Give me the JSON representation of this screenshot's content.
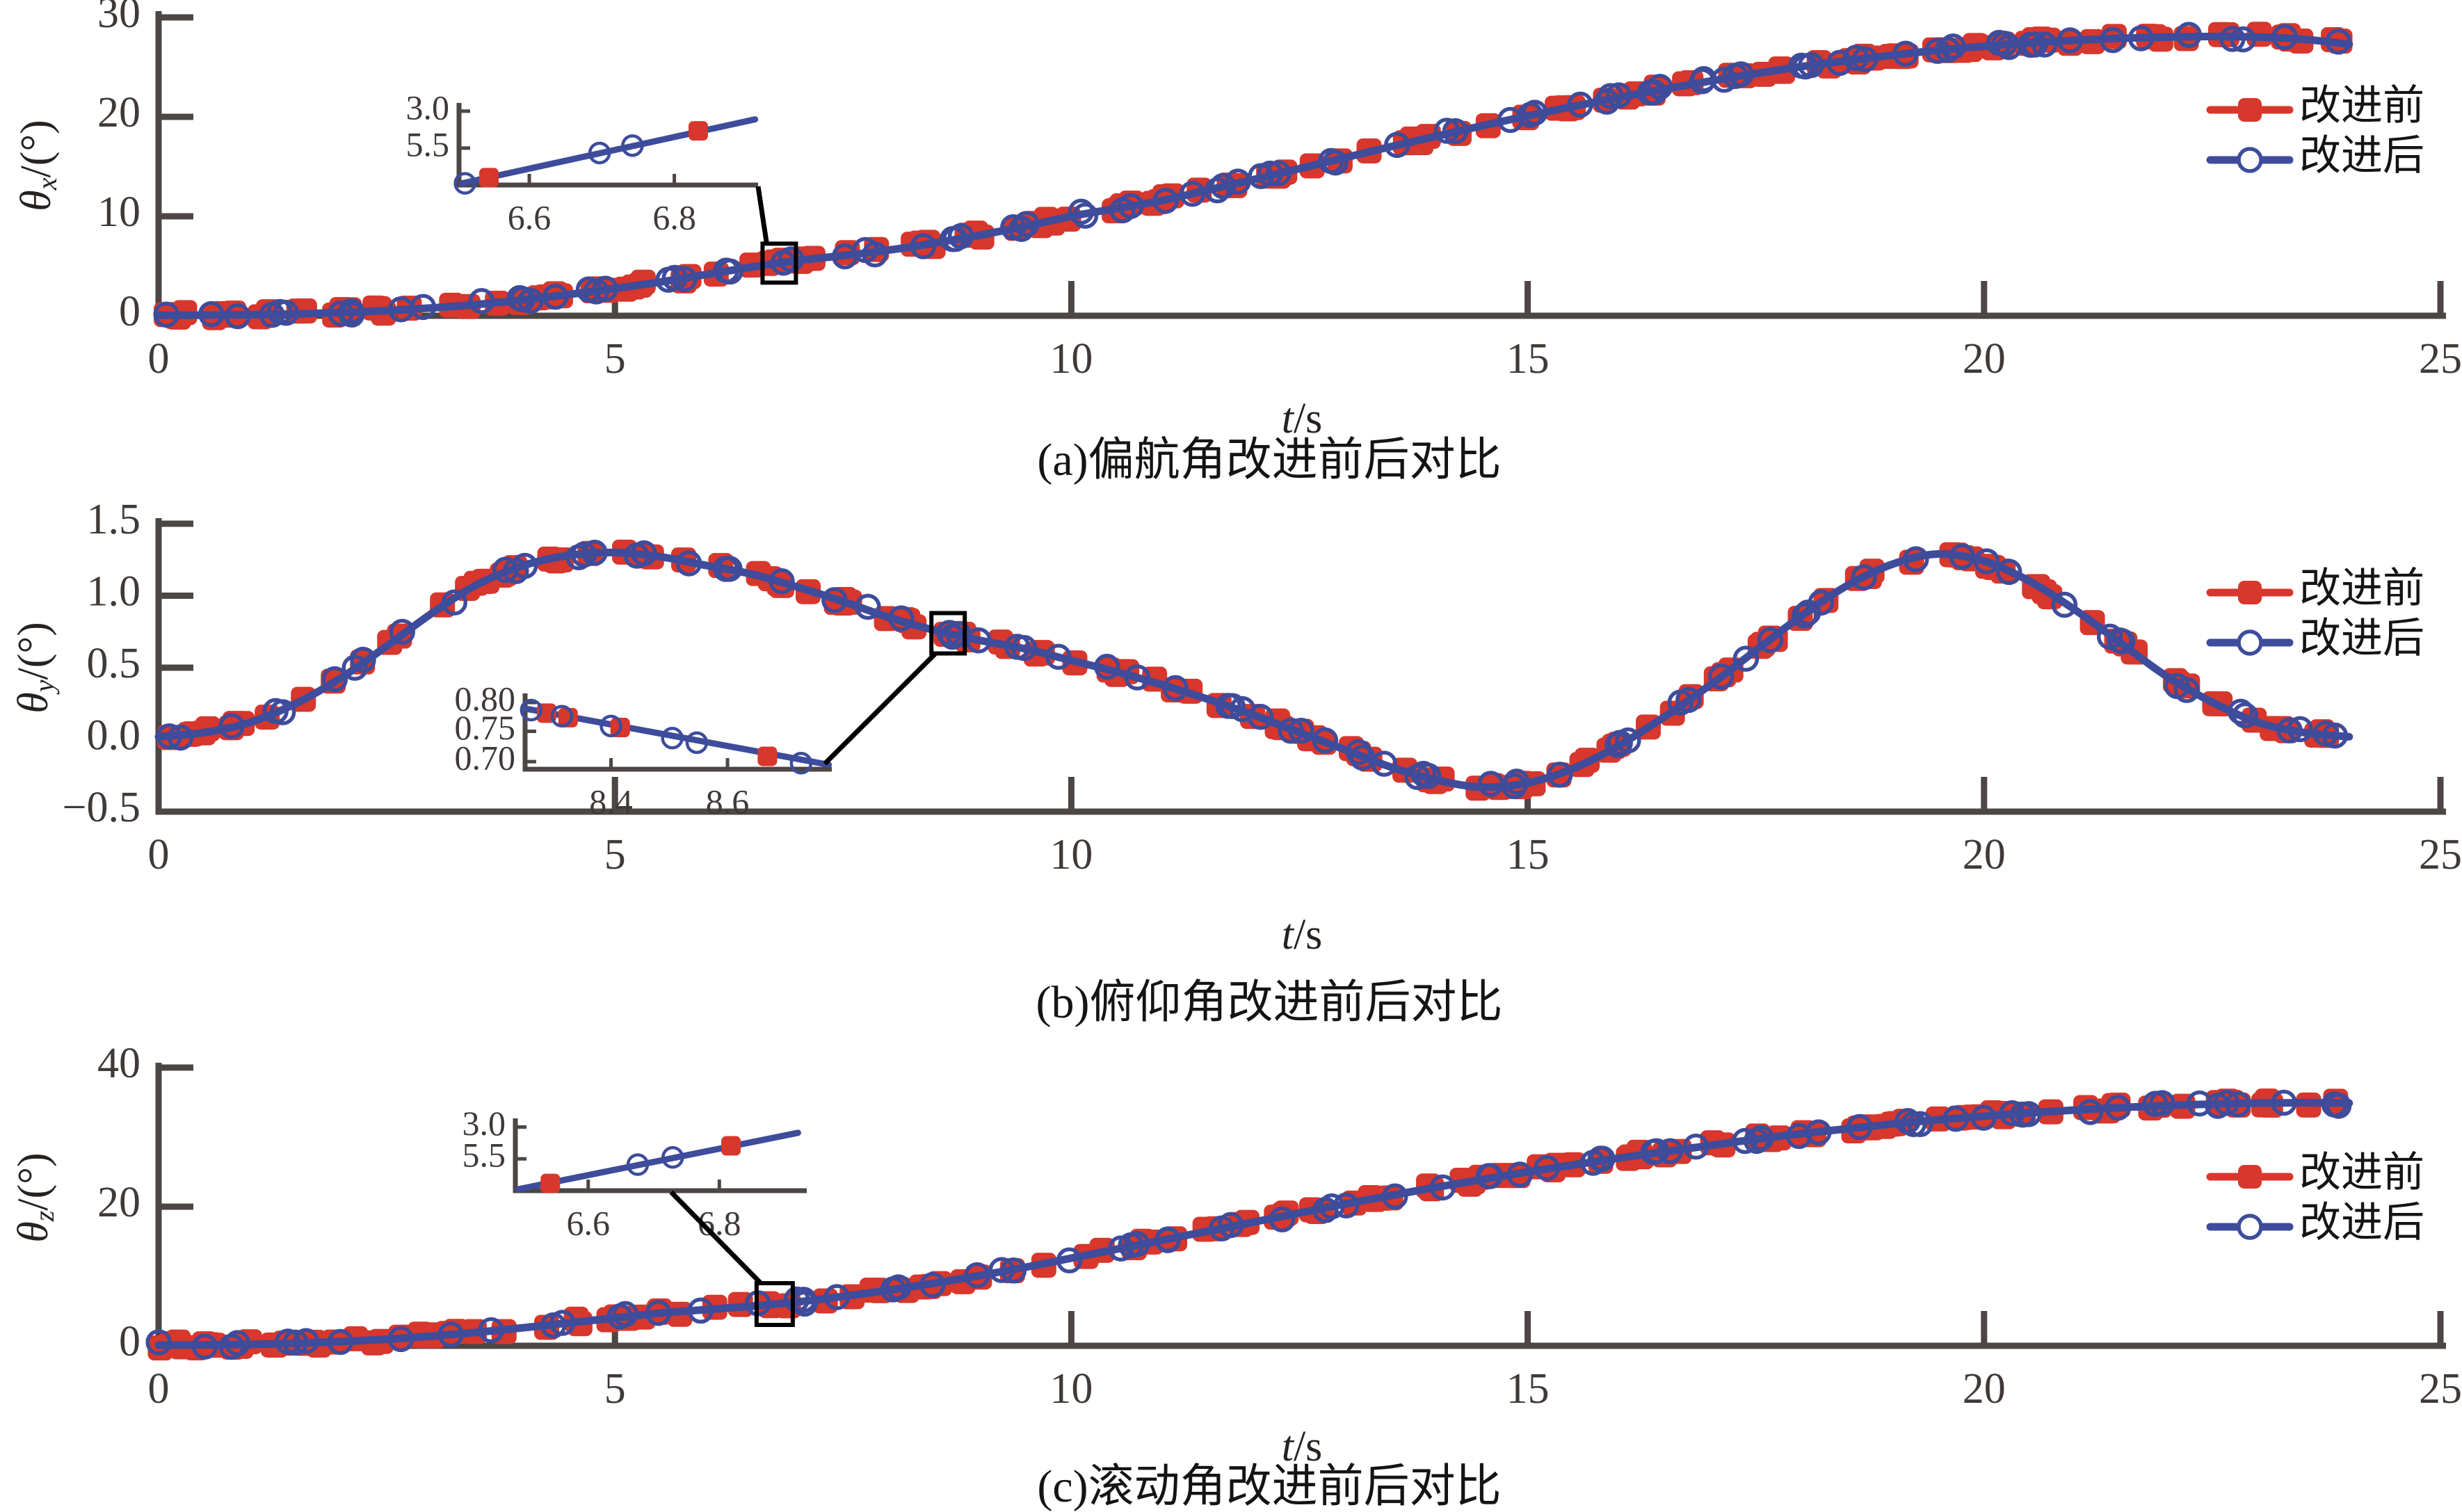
{
  "colors": {
    "before": "#d7372c",
    "after": "#3e4c9b",
    "axis": "#4c4644",
    "tick_text": "#3f3a37",
    "caption_text": "#161412",
    "callout": "#000000",
    "background": "#ffffff"
  },
  "legend": {
    "before_label": "改进前",
    "after_label": "改进后"
  },
  "chart_data": [
    {
      "type": "line",
      "panel": "a",
      "title": "(a)偏航角改进前后对比",
      "xlabel": "t/s",
      "xlabel_t": "t",
      "xlabel_unit": "/s",
      "ylabel": "θx/(°)",
      "ylabel_theta": "θ",
      "ylabel_sub": "x",
      "ylabel_unit": "/(°)",
      "xlim": [
        0,
        25
      ],
      "ylim": [
        0,
        30
      ],
      "xticks": [
        0,
        5,
        10,
        15,
        20,
        25
      ],
      "xtick_labels": [
        "0",
        "5",
        "10",
        "15",
        "20",
        "25"
      ],
      "yticks": [
        0,
        10,
        20,
        30
      ],
      "ytick_labels": [
        "0",
        "10",
        "20",
        "30"
      ],
      "grid": false,
      "legend_position": "upper-right",
      "x_start": 0,
      "x_step": 0.5,
      "values": [
        0.05,
        0.06,
        0.1,
        0.18,
        0.32,
        0.52,
        0.8,
        1.15,
        1.6,
        2.15,
        2.75,
        3.4,
        4.15,
        4.9,
        5.55,
        6.05,
        6.6,
        7.3,
        8.1,
        9.0,
        10.0,
        10.8,
        11.6,
        12.65,
        13.7,
        14.8,
        15.9,
        17.0,
        18.05,
        19.1,
        20.1,
        21.05,
        21.95,
        22.8,
        23.6,
        24.35,
        25.05,
        25.65,
        26.2,
        26.7,
        27.1,
        27.45,
        27.7,
        27.9,
        28.02,
        28.08,
        28.02,
        27.8,
        27.3
      ],
      "series": [
        {
          "name": "改进前",
          "marker": "square",
          "color_key": "before"
        },
        {
          "name": "改进后",
          "marker": "circle",
          "color_key": "after"
        }
      ],
      "zoom_center_t": 6.8,
      "inset": {
        "yticks": [
          {
            "label": "3.0",
            "f": 0.9
          },
          {
            "label": "5.5",
            "f": 0.45
          }
        ],
        "xticks": [
          {
            "label": "6.6",
            "f": 0.235
          },
          {
            "label": "6.8",
            "f": 0.72
          }
        ],
        "line": [
          [
            0.01,
            0.02
          ],
          [
            0.99,
            0.8
          ]
        ],
        "squares": [
          [
            0.1,
            0.09
          ],
          [
            0.8,
            0.66
          ]
        ],
        "circles": [
          [
            0.02,
            0.02
          ],
          [
            0.47,
            0.39
          ],
          [
            0.58,
            0.48
          ]
        ]
      }
    },
    {
      "type": "line",
      "panel": "b",
      "title": "(b)俯仰角改进前后对比",
      "xlabel": "t/s",
      "xlabel_t": "t",
      "xlabel_unit": "/s",
      "ylabel": "θy/(°)",
      "ylabel_theta": "θ",
      "ylabel_sub": "y",
      "ylabel_unit": "/(°)",
      "xlim": [
        0,
        25
      ],
      "ylim": [
        -0.5,
        1.5
      ],
      "xticks": [
        0,
        5,
        10,
        15,
        20,
        25
      ],
      "xtick_labels": [
        "0",
        "5",
        "10",
        "15",
        "20",
        "25"
      ],
      "yticks": [
        -0.5,
        0.0,
        0.5,
        1.0,
        1.5
      ],
      "ytick_labels": [
        "−0.5",
        "0.0",
        "0.5",
        "1.0",
        "1.5"
      ],
      "grid": false,
      "legend_position": "upper-right",
      "x_start": 0,
      "x_step": 0.5,
      "values": [
        0.02,
        0.05,
        0.12,
        0.25,
        0.43,
        0.65,
        0.88,
        1.08,
        1.21,
        1.28,
        1.3,
        1.27,
        1.21,
        1.15,
        1.06,
        0.96,
        0.85,
        0.76,
        0.69,
        0.63,
        0.55,
        0.47,
        0.38,
        0.28,
        0.17,
        0.05,
        -0.07,
        -0.19,
        -0.28,
        -0.33,
        -0.3,
        -0.2,
        -0.04,
        0.16,
        0.38,
        0.62,
        0.86,
        1.07,
        1.22,
        1.29,
        1.24,
        1.1,
        0.9,
        0.67,
        0.44,
        0.26,
        0.12,
        0.05,
        0.02
      ],
      "series": [
        {
          "name": "改进前",
          "marker": "square",
          "color_key": "before"
        },
        {
          "name": "改进后",
          "marker": "circle",
          "color_key": "after"
        }
      ],
      "zoom_center_t": 8.65,
      "inset": {
        "yticks": [
          {
            "label": "0.80",
            "f": 0.88
          },
          {
            "label": "0.75",
            "f": 0.5
          },
          {
            "label": "0.70",
            "f": 0.1
          }
        ],
        "xticks": [
          {
            "label": "8.4",
            "f": 0.28
          },
          {
            "label": "8.6",
            "f": 0.66
          }
        ],
        "line": [
          [
            0.0,
            0.8
          ],
          [
            0.99,
            0.06
          ]
        ],
        "squares": [
          [
            0.07,
            0.74
          ],
          [
            0.14,
            0.68
          ],
          [
            0.31,
            0.55
          ],
          [
            0.79,
            0.17
          ]
        ],
        "circles": [
          [
            0.02,
            0.78
          ],
          [
            0.12,
            0.7
          ],
          [
            0.28,
            0.57
          ],
          [
            0.48,
            0.41
          ],
          [
            0.56,
            0.35
          ],
          [
            0.9,
            0.08
          ]
        ]
      }
    },
    {
      "type": "line",
      "panel": "c",
      "title": "(c)滚动角改进前后对比",
      "xlabel": "t/s",
      "xlabel_t": "t",
      "xlabel_unit": "/s",
      "ylabel": "θz/(°)",
      "ylabel_theta": "θ",
      "ylabel_sub": "z",
      "ylabel_unit": "/(°)",
      "xlim": [
        0,
        25
      ],
      "ylim": [
        0,
        40
      ],
      "xticks": [
        0,
        5,
        10,
        15,
        20,
        25
      ],
      "xtick_labels": [
        "0",
        "5",
        "10",
        "15",
        "20",
        "25"
      ],
      "yticks": [
        0,
        20,
        40
      ],
      "ytick_labels": [
        "0",
        "20",
        "40"
      ],
      "grid": false,
      "legend_position": "middle-right",
      "x_start": 0,
      "x_step": 0.5,
      "values": [
        0.1,
        0.12,
        0.2,
        0.35,
        0.6,
        0.95,
        1.4,
        1.95,
        2.6,
        3.3,
        4.0,
        4.7,
        5.2,
        5.7,
        6.3,
        7.1,
        8.0,
        9.0,
        10.1,
        11.3,
        12.6,
        13.9,
        15.2,
        16.5,
        17.8,
        19.1,
        20.4,
        21.6,
        22.8,
        23.9,
        25.0,
        26.0,
        27.0,
        27.9,
        28.8,
        29.7,
        30.5,
        31.2,
        31.9,
        32.5,
        33.0,
        33.5,
        33.9,
        34.25,
        34.55,
        34.75,
        34.9,
        34.95,
        34.9
      ],
      "series": [
        {
          "name": "改进前",
          "marker": "square",
          "color_key": "before"
        },
        {
          "name": "改进后",
          "marker": "circle",
          "color_key": "after"
        }
      ],
      "zoom_center_t": 6.75,
      "inset": {
        "yticks": [
          {
            "label": "3.0",
            "f": 0.88
          },
          {
            "label": "5.5",
            "f": 0.44
          }
        ],
        "xticks": [
          {
            "label": "6.6",
            "f": 0.25
          },
          {
            "label": "6.8",
            "f": 0.7
          }
        ],
        "line": [
          [
            0.01,
            0.02
          ],
          [
            0.97,
            0.8
          ]
        ],
        "squares": [
          [
            0.12,
            0.1
          ],
          [
            0.74,
            0.62
          ]
        ],
        "circles": [
          [
            0.42,
            0.36
          ],
          [
            0.54,
            0.46
          ]
        ]
      }
    }
  ]
}
